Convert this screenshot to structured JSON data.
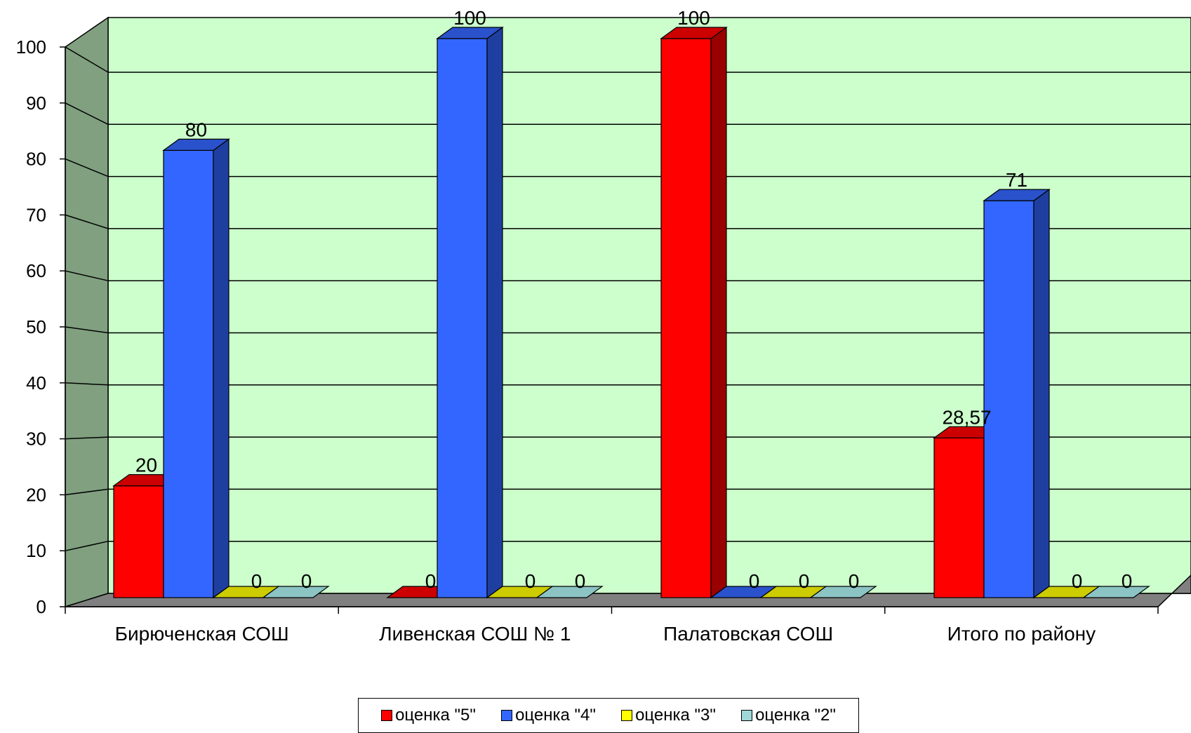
{
  "chart_data": {
    "type": "bar",
    "categories": [
      "Бирюченская СОШ",
      "Ливенская  СОШ № 1",
      "Палатовская СОШ",
      "Итого по району"
    ],
    "series": [
      {
        "name": "оценка \"5\"",
        "values": [
          20,
          0,
          100,
          28.57
        ],
        "labels": [
          "20",
          "0",
          "100",
          "28,57"
        ]
      },
      {
        "name": "оценка \"4\"",
        "values": [
          80,
          100,
          0,
          71
        ],
        "labels": [
          "80",
          "100",
          "0",
          "71"
        ]
      },
      {
        "name": "оценка \"3\"",
        "values": [
          0,
          0,
          0,
          0
        ],
        "labels": [
          "0",
          "0",
          "0",
          "0"
        ]
      },
      {
        "name": "оценка \"2\"",
        "values": [
          0,
          0,
          0,
          0
        ],
        "labels": [
          "0",
          "0",
          "0",
          "0"
        ]
      }
    ],
    "yticks": [
      "0",
      "10",
      "20",
      "30",
      "40",
      "50",
      "60",
      "70",
      "80",
      "90",
      "100"
    ],
    "ylim": [
      0,
      100
    ],
    "grid": true,
    "legend_position": "bottom",
    "colors": {
      "series": [
        "#ff0000",
        "#3366ff",
        "#ffff00",
        "#a0d8d8"
      ],
      "series_side": [
        "#990000",
        "#1f3fa0",
        "#999900",
        "#6aa0a0"
      ],
      "series_top": [
        "#cc0000",
        "#2a52cc",
        "#cccc00",
        "#8cc4c4"
      ],
      "back_wall": "#ccffcc",
      "side_wall": "#80a080",
      "floor": "#808080"
    }
  }
}
